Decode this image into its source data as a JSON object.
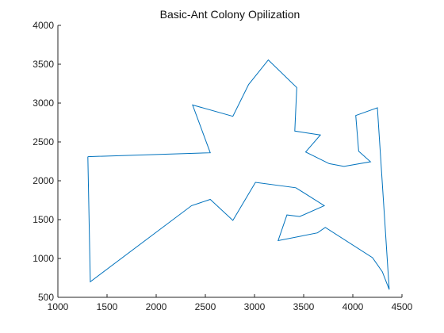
{
  "chart_data": {
    "type": "line",
    "title": "Basic-Ant Colony Opilization",
    "xlabel": "",
    "ylabel": "",
    "xlim": [
      1000,
      4500
    ],
    "ylim": [
      500,
      4000
    ],
    "xticks": [
      1000,
      1500,
      2000,
      2500,
      3000,
      3500,
      4000,
      4500
    ],
    "yticks": [
      500,
      1000,
      1500,
      2000,
      2500,
      3000,
      3500,
      4000
    ],
    "xtick_labels": [
      "1000",
      "1500",
      "2000",
      "2500",
      "3000",
      "3500",
      "4000",
      "4500"
    ],
    "ytick_labels": [
      "500",
      "1000",
      "1500",
      "2000",
      "2500",
      "3000",
      "3500",
      "4000"
    ],
    "grid": false,
    "legend": "none",
    "series": [
      {
        "color": "#0072BD",
        "points": [
          [
            1305,
            2310
          ],
          [
            2550,
            2360
          ],
          [
            2370,
            2975
          ],
          [
            2780,
            2830
          ],
          [
            2940,
            3240
          ],
          [
            3140,
            3555
          ],
          [
            3430,
            3200
          ],
          [
            3410,
            2640
          ],
          [
            3670,
            2590
          ],
          [
            3520,
            2370
          ],
          [
            3760,
            2220
          ],
          [
            3910,
            2185
          ],
          [
            4180,
            2245
          ],
          [
            4060,
            2380
          ],
          [
            4030,
            2840
          ],
          [
            4250,
            2940
          ],
          [
            4370,
            600
          ],
          [
            4300,
            830
          ],
          [
            4200,
            1010
          ],
          [
            3720,
            1400
          ],
          [
            3640,
            1330
          ],
          [
            3240,
            1230
          ],
          [
            3330,
            1560
          ],
          [
            3460,
            1540
          ],
          [
            3710,
            1680
          ],
          [
            3420,
            1910
          ],
          [
            3010,
            1980
          ],
          [
            2780,
            1490
          ],
          [
            2550,
            1760
          ],
          [
            2360,
            1680
          ],
          [
            1330,
            700
          ],
          [
            1305,
            2310
          ]
        ]
      }
    ]
  }
}
